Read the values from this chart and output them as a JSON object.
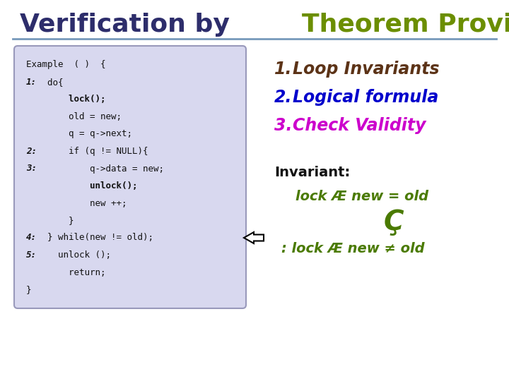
{
  "title_part1": "Verification by ",
  "title_part2": "Theorem Proving",
  "title_color1": "#2d2d6b",
  "title_color2": "#6b8e00",
  "title_fontsize": 26,
  "bg_color": "#ffffff",
  "code_bg_color": "#d8d8ef",
  "code_border_color": "#9999bb",
  "code_lines": [
    "Example  ( )  {",
    "1:  do{",
    "        lock();",
    "        old = new;",
    "        q = q->next;",
    "2:      if (q != NULL){",
    "3:          q->data = new;",
    "            unlock();",
    "            new ++;",
    "        }",
    "4:  } while(new != old);",
    "5:    unlock ();",
    "        return;",
    "}"
  ],
  "list_items": [
    {
      "num": "1.",
      "text": " Loop Invariants",
      "num_color": "#5c3317",
      "text_color": "#5c3317"
    },
    {
      "num": "2.",
      "text": " Logical formula",
      "num_color": "#0000cc",
      "text_color": "#0000cc"
    },
    {
      "num": "3.",
      "text": " Check Validity",
      "num_color": "#cc00cc",
      "text_color": "#cc00cc"
    }
  ],
  "invariant_label": "Invariant:",
  "invariant_line1": "   lock Æ new = old",
  "invariant_line2": "           Ç",
  "invariant_line3": " : lock Æ new ≠ old",
  "invariant_color": "#4a7a00",
  "separator_color": "#7799bb",
  "arrow_color": "#222222",
  "list_fontsize": 17,
  "inv_fontsize": 14
}
